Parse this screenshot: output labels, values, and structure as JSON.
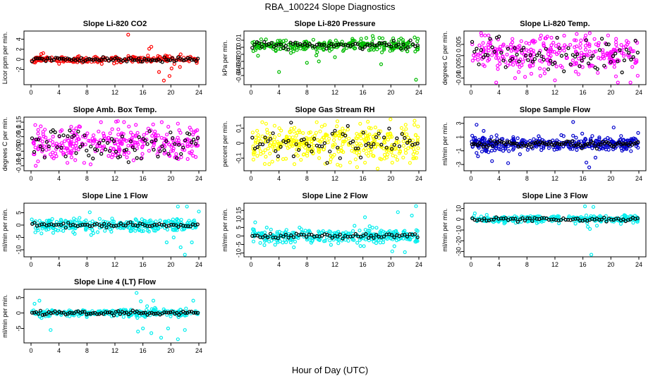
{
  "title": "RBA_100224  Slope Diagnostics",
  "x_axis_label": "Hour of Day (UTC)",
  "chart_data": [
    {
      "type": "scatter",
      "title": "Slope Li-820 CO2",
      "ylabel": "Licor ppm per min.",
      "xlim": [
        0,
        24
      ],
      "xticks": [
        0,
        4,
        8,
        12,
        16,
        20,
        24
      ],
      "ylim": [
        -4.6,
        5.2
      ],
      "yticks": [
        -2,
        0,
        2,
        4
      ],
      "color": "#ff0000",
      "seed": 11,
      "n": 210,
      "center": 0.0,
      "spread": 0.35,
      "black_spread": 0.25,
      "n_black": 85,
      "outliers": [
        [
          13.9,
          4.9
        ],
        [
          16.9,
          2.1
        ],
        [
          17.2,
          2.5
        ],
        [
          18.3,
          -2.5
        ],
        [
          19.0,
          -4.2
        ],
        [
          19.8,
          -3.3
        ],
        [
          20.5,
          -0.9
        ],
        [
          21.3,
          -1.5
        ],
        [
          21.4,
          1.0
        ],
        [
          20.1,
          -1.8
        ]
      ]
    },
    {
      "type": "scatter",
      "title": "Slope Li-820 Pressure",
      "ylabel": "kPa per min.",
      "xlim": [
        0,
        24
      ],
      "xticks": [
        0,
        4,
        8,
        12,
        16,
        20,
        24
      ],
      "ylim": [
        -0.05,
        0.02
      ],
      "yticks": [
        -0.04,
        -0.03,
        -0.02,
        -0.01,
        0.0,
        0.01
      ],
      "color": "#00bb00",
      "seed": 23,
      "n": 260,
      "center": 0.003,
      "spread": 0.004,
      "black_spread": 0.003,
      "n_black": 70,
      "outliers": [
        [
          1.0,
          -0.012
        ],
        [
          4.0,
          -0.035
        ],
        [
          5.7,
          -0.008
        ],
        [
          8.0,
          -0.022
        ],
        [
          9.7,
          -0.02
        ],
        [
          12.0,
          -0.014
        ],
        [
          17.4,
          0.016
        ],
        [
          18.6,
          -0.024
        ],
        [
          23.4,
          0.014
        ],
        [
          23.6,
          -0.046
        ],
        [
          14.5,
          0.012
        ]
      ]
    },
    {
      "type": "scatter",
      "title": "Slope Li-820 Temp.",
      "ylabel": "degrees C per min.",
      "xlim": [
        0,
        24
      ],
      "xticks": [
        0,
        4,
        8,
        12,
        16,
        20,
        24
      ],
      "ylim": [
        -0.012,
        0.01
      ],
      "yticks": [
        -0.01,
        -0.005,
        0.0,
        0.005
      ],
      "color": "#ff00ff",
      "seed": 37,
      "n": 300,
      "center": 0.0005,
      "spread": 0.004,
      "black_spread": 0.0035,
      "n_black": 75,
      "outliers": [
        [
          1.5,
          0.009
        ],
        [
          2.0,
          0.009
        ],
        [
          2.5,
          0.009
        ],
        [
          3.6,
          -0.012
        ],
        [
          6.3,
          -0.01
        ],
        [
          11.5,
          0.008
        ],
        [
          12.0,
          -0.011
        ],
        [
          16.4,
          0.009
        ],
        [
          19.6,
          0.009
        ],
        [
          21.0,
          -0.012
        ],
        [
          22.8,
          -0.012
        ]
      ]
    },
    {
      "type": "scatter",
      "title": "Slope Amb. Box Temp.",
      "ylabel": "degrees C per min.",
      "xlim": [
        0,
        24
      ],
      "xticks": [
        0,
        4,
        8,
        12,
        16,
        20,
        24
      ],
      "ylim": [
        -0.17,
        0.17
      ],
      "yticks": [
        -0.15,
        -0.1,
        -0.05,
        0.0,
        0.05,
        0.1,
        0.15
      ],
      "color": "#ff00ff",
      "seed": 41,
      "n": 300,
      "center": 0.0,
      "spread": 0.06,
      "black_spread": 0.055,
      "n_black": 80,
      "outliers": [
        [
          0.6,
          0.13
        ],
        [
          1.0,
          -0.12
        ],
        [
          5.2,
          -0.13
        ],
        [
          7.6,
          -0.13
        ],
        [
          10.0,
          0.15
        ],
        [
          14.0,
          0.12
        ],
        [
          18.7,
          0.15
        ],
        [
          21.0,
          0.14
        ]
      ]
    },
    {
      "type": "scatter",
      "title": "Slope Gas Stream RH",
      "ylabel": "percent per min.",
      "xlim": [
        0,
        24
      ],
      "xticks": [
        0,
        4,
        8,
        12,
        16,
        20,
        24
      ],
      "ylim": [
        -0.17,
        0.16
      ],
      "yticks": [
        -0.1,
        0.0,
        0.1
      ],
      "color": "#ffff00",
      "seed": 53,
      "n": 380,
      "center": 0.0,
      "spread": 0.06,
      "black_spread": 0.05,
      "n_black": 65,
      "outliers": [
        [
          1.6,
          0.14
        ],
        [
          2.6,
          -0.14
        ],
        [
          6.2,
          -0.14
        ],
        [
          9.4,
          0.14
        ],
        [
          12.8,
          -0.15
        ],
        [
          16.3,
          -0.13
        ],
        [
          20.2,
          -0.13
        ],
        [
          23.4,
          0.15
        ]
      ]
    },
    {
      "type": "scatter",
      "title": "Slope Sample Flow",
      "ylabel": "ml/min per min.",
      "xlim": [
        0,
        24
      ],
      "xticks": [
        0,
        4,
        8,
        12,
        16,
        20,
        24
      ],
      "ylim": [
        -3.6,
        3.6
      ],
      "yticks": [
        -3,
        -1,
        1,
        3
      ],
      "color": "#0000cc",
      "seed": 67,
      "n": 340,
      "center": 0.0,
      "spread": 0.45,
      "black_spread": 0.2,
      "n_black": 90,
      "outliers": [
        [
          0.8,
          2.8
        ],
        [
          1.0,
          -1.8
        ],
        [
          1.8,
          1.9
        ],
        [
          2.5,
          -1.2
        ],
        [
          3.0,
          -2.5
        ],
        [
          5.3,
          -2.8
        ],
        [
          7.0,
          -1.5
        ],
        [
          14.6,
          3.2
        ],
        [
          16.5,
          -2.7
        ],
        [
          16.9,
          -3.4
        ],
        [
          17.8,
          -2.0
        ],
        [
          20.4,
          2.4
        ],
        [
          23.9,
          1.6
        ],
        [
          15.9,
          1.5
        ]
      ]
    },
    {
      "type": "scatter",
      "title": "Slope Line 1 Flow",
      "ylabel": "ml/min per min.",
      "xlim": [
        0,
        24
      ],
      "xticks": [
        0,
        4,
        8,
        12,
        16,
        20,
        24
      ],
      "ylim": [
        -12,
        8
      ],
      "yticks": [
        -10,
        -5,
        0,
        5
      ],
      "color": "#00eeee",
      "seed": 71,
      "n": 300,
      "center": 0.0,
      "spread": 1.3,
      "black_spread": 0.5,
      "n_black": 70,
      "outliers": [
        [
          8.4,
          5.2
        ],
        [
          8.6,
          -4.0
        ],
        [
          20.4,
          -5.0
        ],
        [
          21.0,
          7.5
        ],
        [
          21.4,
          -9.0
        ],
        [
          22.0,
          -12.0
        ],
        [
          23.0,
          -7.0
        ],
        [
          24.0,
          5.5
        ],
        [
          22.3,
          7.5
        ],
        [
          19.4,
          -7.0
        ]
      ]
    },
    {
      "type": "scatter",
      "title": "Slope Line 2 Flow",
      "ylabel": "ml/min per min.",
      "xlim": [
        0,
        24
      ],
      "xticks": [
        0,
        4,
        8,
        12,
        16,
        20,
        24
      ],
      "ylim": [
        -11,
        18
      ],
      "yticks": [
        -10,
        -5,
        0,
        5,
        10,
        15
      ],
      "color": "#00eeee",
      "seed": 83,
      "n": 300,
      "center": 0.0,
      "spread": 2.0,
      "black_spread": 0.8,
      "n_black": 65,
      "outliers": [
        [
          0.6,
          8.0
        ],
        [
          14.8,
          6.0
        ],
        [
          15.2,
          -4.0
        ],
        [
          16.3,
          11.0
        ],
        [
          20.2,
          -9.0
        ],
        [
          20.5,
          -6.0
        ],
        [
          21.0,
          14.0
        ],
        [
          23.8,
          -3.0
        ],
        [
          22.0,
          -9.5
        ],
        [
          23.0,
          12.0
        ],
        [
          23.6,
          17.5
        ]
      ]
    },
    {
      "type": "scatter",
      "title": "Slope Line 3 Flow",
      "ylabel": "ml/min per min.",
      "xlim": [
        0,
        24
      ],
      "xticks": [
        0,
        4,
        8,
        12,
        16,
        20,
        24
      ],
      "ylim": [
        -33,
        13
      ],
      "yticks": [
        -30,
        -20,
        -10,
        0,
        10
      ],
      "color": "#00eeee",
      "seed": 97,
      "n": 280,
      "center": 0.0,
      "spread": 1.8,
      "black_spread": 1.0,
      "n_black": 70,
      "outliers": [
        [
          16.3,
          12.0
        ],
        [
          16.7,
          -7.0
        ],
        [
          17.0,
          -9.0
        ],
        [
          17.2,
          -33.0
        ],
        [
          18.0,
          -6.0
        ],
        [
          17.5,
          11.5
        ]
      ]
    },
    {
      "type": "scatter",
      "title": "Slope Line 4 (LT) Flow",
      "ylabel": "ml/min per min.",
      "xlim": [
        0,
        24
      ],
      "xticks": [
        0,
        4,
        8,
        12,
        16,
        20,
        24
      ],
      "ylim": [
        -9,
        7
      ],
      "yticks": [
        -5,
        0,
        5
      ],
      "color": "#00eeee",
      "seed": 103,
      "n": 280,
      "center": 0.0,
      "spread": 0.6,
      "black_spread": 0.35,
      "n_black": 80,
      "outliers": [
        [
          0.5,
          3.0
        ],
        [
          1.2,
          4.0
        ],
        [
          2.8,
          -5.5
        ],
        [
          15.1,
          6.5
        ],
        [
          15.3,
          -6.0
        ],
        [
          16.0,
          -5.0
        ],
        [
          17.2,
          -6.5
        ],
        [
          17.5,
          4.0
        ],
        [
          18.6,
          -8.0
        ],
        [
          19.6,
          -5.0
        ],
        [
          21.0,
          -8.5
        ],
        [
          22.0,
          -5.5
        ],
        [
          23.2,
          4.0
        ],
        [
          16.6,
          2.2
        ],
        [
          15.7,
          3.8
        ]
      ]
    }
  ]
}
